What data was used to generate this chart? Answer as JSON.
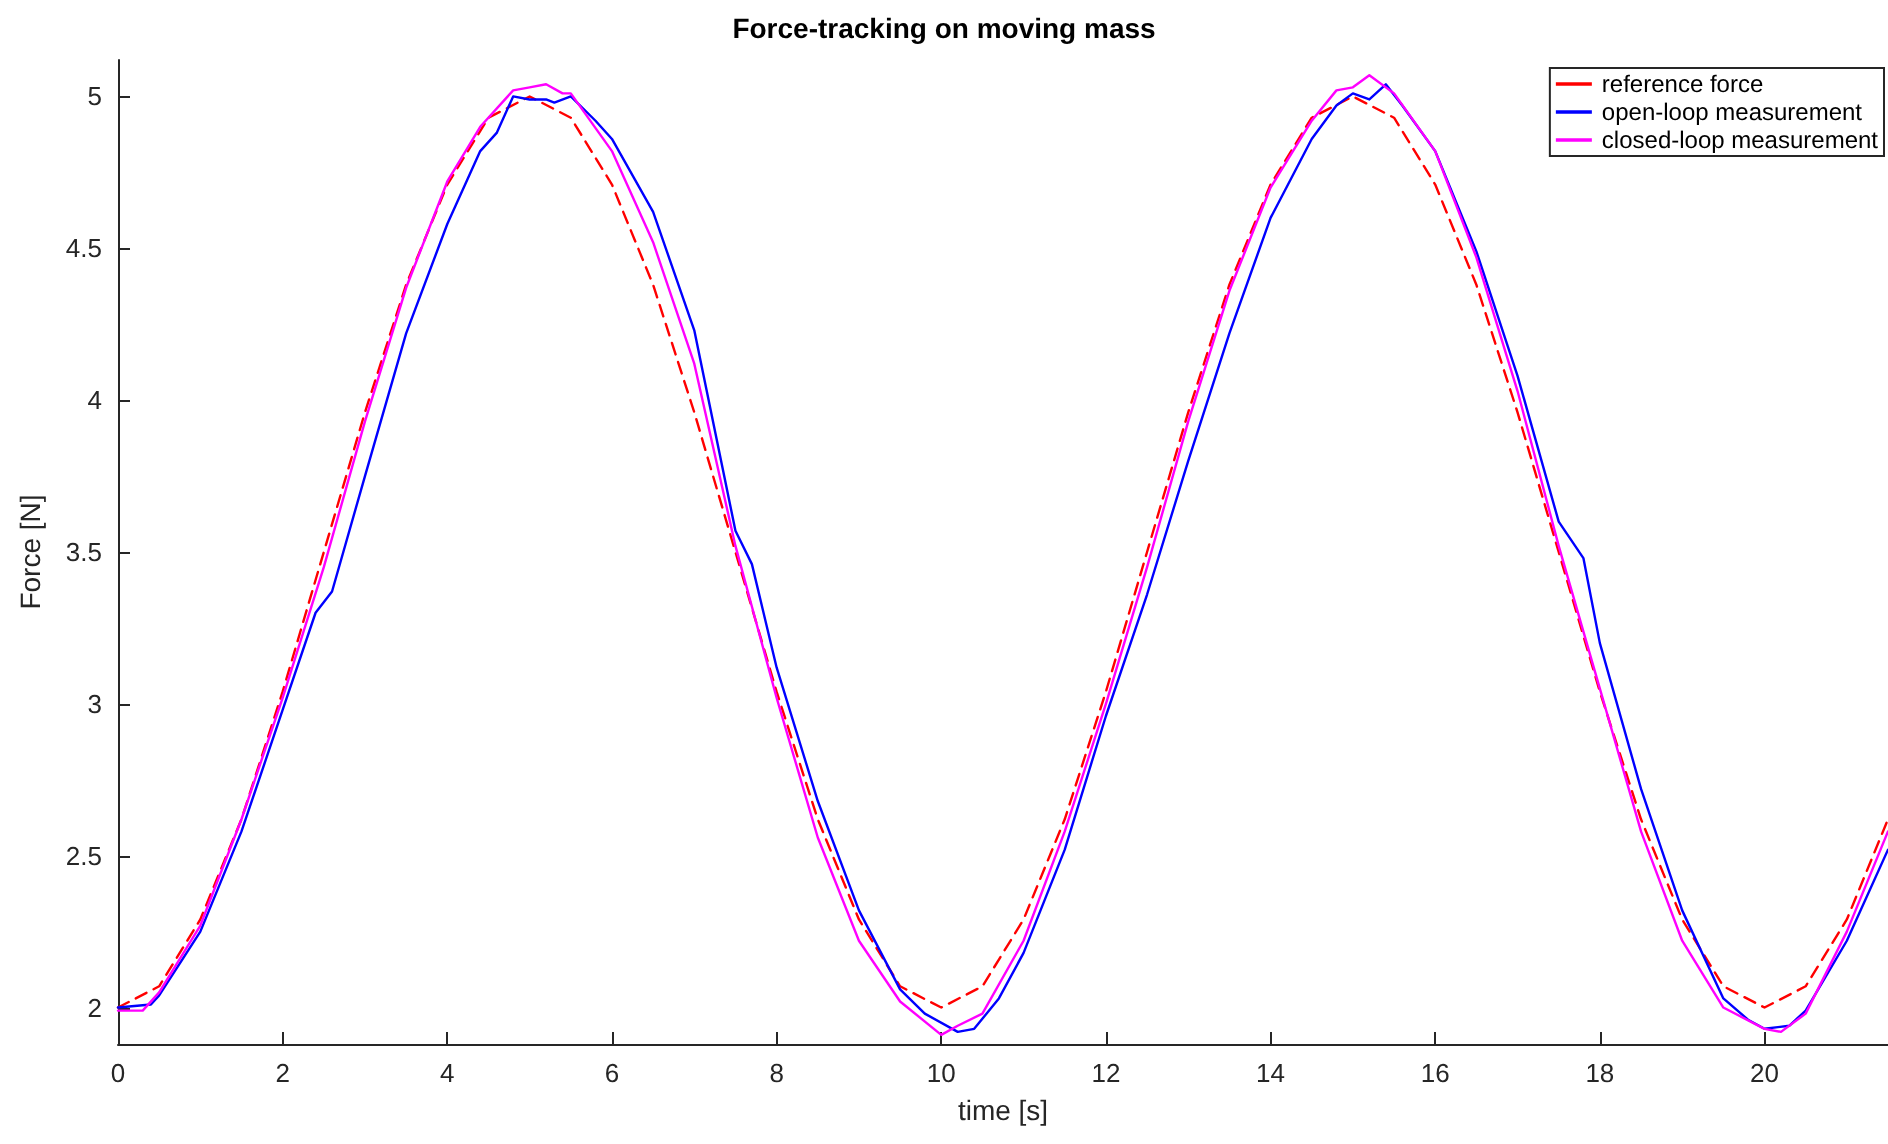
{
  "chart_data": {
    "type": "line",
    "title": "Force-tracking on moving mass",
    "xlabel": "time [s]",
    "ylabel": "Force [N]",
    "xlim": [
      0,
      21.5
    ],
    "xticks": [
      0,
      2,
      4,
      6,
      8,
      10,
      12,
      14,
      16,
      18,
      20
    ],
    "ylim": [
      1.88,
      5.12
    ],
    "yticks": [
      2,
      2.5,
      3,
      3.5,
      4,
      4.5,
      5
    ],
    "grid": false,
    "legend": "top right",
    "marker": "none",
    "series": [
      {
        "name": "reference force",
        "color": "#ff0000",
        "line_style": "dashed",
        "x": [
          0,
          0.5,
          1,
          1.5,
          2,
          2.5,
          3,
          3.5,
          4,
          4.5,
          5,
          5.5,
          6,
          6.5,
          7,
          7.5,
          8,
          8.5,
          9,
          9.5,
          10,
          10.5,
          11,
          11.5,
          12,
          12.5,
          13,
          13.5,
          14,
          14.5,
          15,
          15.5,
          16,
          16.5,
          17,
          17.5,
          18,
          18.5,
          19,
          19.5,
          20,
          20.5,
          21,
          21.5
        ],
        "values": [
          2.0,
          2.07,
          2.29,
          2.62,
          3.04,
          3.5,
          3.96,
          4.38,
          4.71,
          4.93,
          5.0,
          4.93,
          4.71,
          4.38,
          3.96,
          3.5,
          3.04,
          2.62,
          2.29,
          2.07,
          2.0,
          2.07,
          2.29,
          2.62,
          3.04,
          3.5,
          3.96,
          4.38,
          4.71,
          4.93,
          5.0,
          4.93,
          4.71,
          4.38,
          3.96,
          3.5,
          3.04,
          2.62,
          2.29,
          2.07,
          2.0,
          2.07,
          2.29,
          2.62
        ]
      },
      {
        "name": "open-loop measurement",
        "color": "#0000ff",
        "line_style": "solid",
        "x": [
          0,
          0.4,
          0.5,
          1.0,
          1.5,
          2.0,
          2.4,
          2.6,
          3.0,
          3.5,
          4.0,
          4.4,
          4.6,
          4.8,
          5.0,
          5.2,
          5.3,
          5.5,
          5.8,
          6.0,
          6.5,
          7.0,
          7.5,
          7.7,
          8.0,
          8.5,
          9.0,
          9.5,
          9.8,
          10.2,
          10.4,
          10.7,
          11.0,
          11.5,
          12.0,
          12.5,
          13.0,
          13.5,
          14.0,
          14.5,
          14.8,
          15.0,
          15.2,
          15.4,
          15.6,
          16.0,
          16.5,
          17.0,
          17.5,
          17.8,
          18.0,
          18.5,
          19.0,
          19.5,
          19.8,
          20.0,
          20.3,
          20.5,
          21.0,
          21.5
        ],
        "values": [
          2.0,
          2.01,
          2.04,
          2.25,
          2.58,
          2.98,
          3.3,
          3.37,
          3.75,
          4.22,
          4.58,
          4.82,
          4.88,
          5.0,
          4.99,
          4.99,
          4.98,
          5.0,
          4.92,
          4.86,
          4.62,
          4.23,
          3.57,
          3.46,
          3.12,
          2.68,
          2.32,
          2.06,
          1.98,
          1.92,
          1.93,
          2.03,
          2.18,
          2.52,
          2.96,
          3.36,
          3.8,
          4.22,
          4.6,
          4.86,
          4.97,
          5.01,
          4.99,
          5.04,
          4.97,
          4.82,
          4.49,
          4.08,
          3.6,
          3.48,
          3.2,
          2.72,
          2.32,
          2.03,
          1.96,
          1.93,
          1.94,
          1.99,
          2.22,
          2.52
        ]
      },
      {
        "name": "closed-loop measurement",
        "color": "#ff00ff",
        "line_style": "solid",
        "x": [
          0,
          0.3,
          0.5,
          1.0,
          1.5,
          2.0,
          2.5,
          3.0,
          3.5,
          4.0,
          4.4,
          4.8,
          5.0,
          5.2,
          5.4,
          5.5,
          6.0,
          6.5,
          7.0,
          7.5,
          8.0,
          8.5,
          9.0,
          9.5,
          10.0,
          10.2,
          10.5,
          11.0,
          11.5,
          12.0,
          12.5,
          13.0,
          13.5,
          14.0,
          14.5,
          14.8,
          15.0,
          15.2,
          15.5,
          16.0,
          16.5,
          17.0,
          17.5,
          18.0,
          18.5,
          19.0,
          19.5,
          20.0,
          20.2,
          20.5,
          21.0,
          21.5
        ],
        "values": [
          1.99,
          1.99,
          2.05,
          2.27,
          2.62,
          3.02,
          3.45,
          3.93,
          4.37,
          4.72,
          4.9,
          5.02,
          5.03,
          5.04,
          5.01,
          5.01,
          4.82,
          4.52,
          4.12,
          3.52,
          3.02,
          2.56,
          2.22,
          2.02,
          1.91,
          1.94,
          1.98,
          2.22,
          2.58,
          3.0,
          3.45,
          3.93,
          4.36,
          4.7,
          4.92,
          5.02,
          5.03,
          5.07,
          5.01,
          4.82,
          4.47,
          4.03,
          3.52,
          3.05,
          2.58,
          2.22,
          2.0,
          1.93,
          1.92,
          1.98,
          2.25,
          2.58
        ]
      }
    ]
  }
}
